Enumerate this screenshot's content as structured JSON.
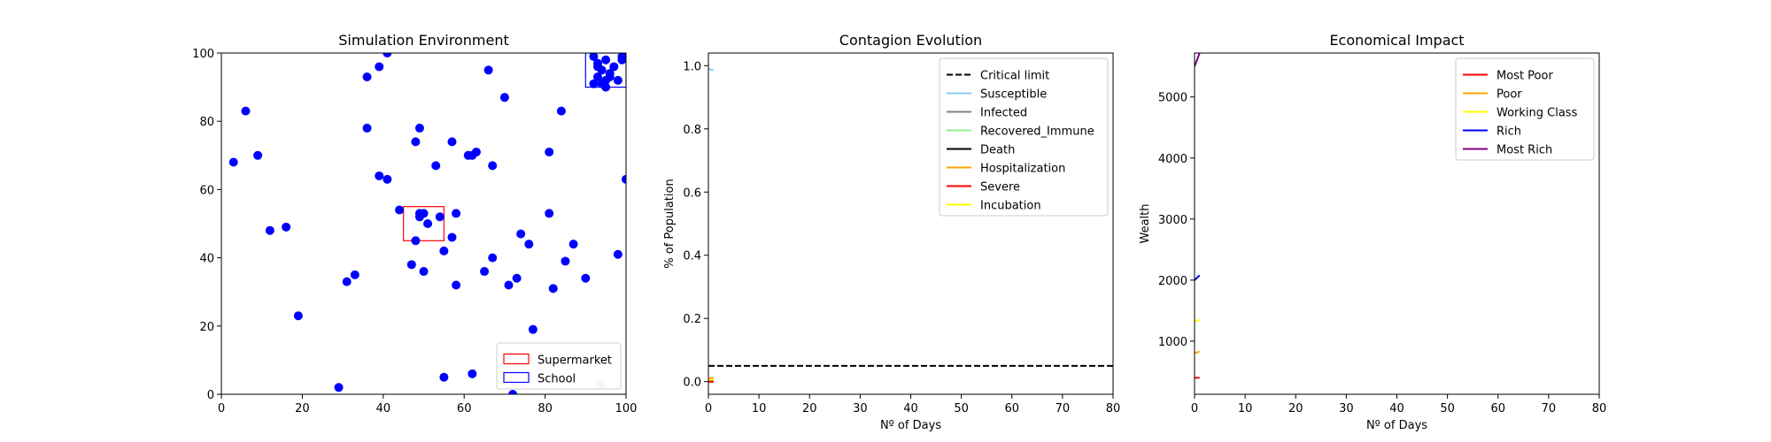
{
  "chart_data": [
    {
      "type": "scatter",
      "title": "Simulation Environment",
      "xlabel": "",
      "ylabel": "",
      "xlim": [
        0,
        100
      ],
      "ylim": [
        0,
        100
      ],
      "xticks": [
        0,
        20,
        40,
        60,
        80,
        100
      ],
      "yticks": [
        0,
        20,
        40,
        60,
        80,
        100
      ],
      "grid": false,
      "legend_position": "lower-right",
      "regions": [
        {
          "name": "Supermarket",
          "color": "#ff0000",
          "x": [
            45,
            55
          ],
          "y": [
            45,
            55
          ]
        },
        {
          "name": "School",
          "color": "#0000ff",
          "x": [
            90,
            100
          ],
          "y": [
            90,
            100
          ]
        }
      ],
      "points": [
        {
          "x": 3,
          "y": 68
        },
        {
          "x": 6,
          "y": 83
        },
        {
          "x": 9,
          "y": 70
        },
        {
          "x": 12,
          "y": 48
        },
        {
          "x": 16,
          "y": 49
        },
        {
          "x": 19,
          "y": 23
        },
        {
          "x": 29,
          "y": 2
        },
        {
          "x": 31,
          "y": 33
        },
        {
          "x": 33,
          "y": 35
        },
        {
          "x": 36,
          "y": 93
        },
        {
          "x": 36,
          "y": 78
        },
        {
          "x": 39,
          "y": 96
        },
        {
          "x": 39,
          "y": 64
        },
        {
          "x": 41,
          "y": 63
        },
        {
          "x": 41,
          "y": 100
        },
        {
          "x": 44,
          "y": 54
        },
        {
          "x": 47,
          "y": 38
        },
        {
          "x": 48,
          "y": 74
        },
        {
          "x": 48,
          "y": 45
        },
        {
          "x": 49,
          "y": 78
        },
        {
          "x": 49,
          "y": 53
        },
        {
          "x": 49,
          "y": 52
        },
        {
          "x": 50,
          "y": 53
        },
        {
          "x": 50,
          "y": 36
        },
        {
          "x": 51,
          "y": 50
        },
        {
          "x": 53,
          "y": 67
        },
        {
          "x": 54,
          "y": 52
        },
        {
          "x": 55,
          "y": 42
        },
        {
          "x": 55,
          "y": 5
        },
        {
          "x": 57,
          "y": 74
        },
        {
          "x": 57,
          "y": 46
        },
        {
          "x": 58,
          "y": 53
        },
        {
          "x": 58,
          "y": 32
        },
        {
          "x": 61,
          "y": 70
        },
        {
          "x": 62,
          "y": 70
        },
        {
          "x": 62,
          "y": 6
        },
        {
          "x": 63,
          "y": 71
        },
        {
          "x": 65,
          "y": 36
        },
        {
          "x": 66,
          "y": 95
        },
        {
          "x": 67,
          "y": 67
        },
        {
          "x": 67,
          "y": 40
        },
        {
          "x": 70,
          "y": 87
        },
        {
          "x": 71,
          "y": 32
        },
        {
          "x": 72,
          "y": 0
        },
        {
          "x": 73,
          "y": 34
        },
        {
          "x": 74,
          "y": 47
        },
        {
          "x": 76,
          "y": 44
        },
        {
          "x": 77,
          "y": 19
        },
        {
          "x": 81,
          "y": 71
        },
        {
          "x": 81,
          "y": 53
        },
        {
          "x": 82,
          "y": 31
        },
        {
          "x": 84,
          "y": 83
        },
        {
          "x": 85,
          "y": 39
        },
        {
          "x": 87,
          "y": 44
        },
        {
          "x": 90,
          "y": 34
        },
        {
          "x": 98,
          "y": 41
        },
        {
          "x": 100,
          "y": 63
        },
        {
          "x": 92,
          "y": 99
        },
        {
          "x": 93,
          "y": 97
        },
        {
          "x": 94,
          "y": 95
        },
        {
          "x": 92,
          "y": 91
        },
        {
          "x": 93,
          "y": 93
        },
        {
          "x": 95,
          "y": 98
        },
        {
          "x": 95,
          "y": 92
        },
        {
          "x": 96,
          "y": 94
        },
        {
          "x": 97,
          "y": 96
        },
        {
          "x": 98,
          "y": 92
        },
        {
          "x": 99,
          "y": 98
        },
        {
          "x": 99,
          "y": 99
        },
        {
          "x": 94,
          "y": 91
        },
        {
          "x": 96,
          "y": 93
        },
        {
          "x": 93,
          "y": 96
        },
        {
          "x": 95,
          "y": 90
        },
        {
          "x": 94,
          "y": 3,
          "faded": true
        }
      ],
      "point_color": "#0000ff"
    },
    {
      "type": "line",
      "title": "Contagion Evolution",
      "xlabel": "Nº of Days",
      "ylabel": "% of Population",
      "xlim": [
        0,
        80
      ],
      "ylim": [
        -0.04,
        1.04
      ],
      "xticks": [
        0,
        10,
        20,
        30,
        40,
        50,
        60,
        70,
        80
      ],
      "yticks": [
        0.0,
        0.2,
        0.4,
        0.6,
        0.8,
        1.0
      ],
      "grid": false,
      "legend_position": "upper-right",
      "series": [
        {
          "name": "Critical limit",
          "color": "#000000",
          "dashed": true,
          "x": [
            0,
            80
          ],
          "y": [
            0.05,
            0.05
          ]
        },
        {
          "name": "Susceptible",
          "color": "#87ceeb",
          "x": [
            0,
            1
          ],
          "y": [
            0.99,
            0.985
          ]
        },
        {
          "name": "Infected",
          "color": "#808080",
          "x": [
            0,
            1
          ],
          "y": [
            0.01,
            0.012
          ]
        },
        {
          "name": "Recovered_Immune",
          "color": "#90ee90",
          "x": [
            0,
            1
          ],
          "y": [
            0.0,
            0.0
          ]
        },
        {
          "name": "Death",
          "color": "#000000",
          "x": [
            0,
            1
          ],
          "y": [
            0.0,
            0.0
          ]
        },
        {
          "name": "Hospitalization",
          "color": "#ffa500",
          "x": [
            0,
            1
          ],
          "y": [
            0.01,
            0.012
          ]
        },
        {
          "name": "Severe",
          "color": "#ff0000",
          "x": [
            0,
            1
          ],
          "y": [
            0.0,
            0.0
          ]
        },
        {
          "name": "Incubation",
          "color": "#ffff00",
          "x": [
            0,
            1
          ],
          "y": [
            0.005,
            0.007
          ]
        }
      ]
    },
    {
      "type": "line",
      "title": "Economical Impact",
      "xlabel": "Nº of Days",
      "ylabel": "Wealth",
      "xlim": [
        0,
        80
      ],
      "ylim": [
        130,
        5720
      ],
      "xticks": [
        0,
        10,
        20,
        30,
        40,
        50,
        60,
        70,
        80
      ],
      "yticks": [
        1000,
        2000,
        3000,
        4000,
        5000
      ],
      "grid": false,
      "legend_position": "upper-right",
      "series": [
        {
          "name": "Most Poor",
          "color": "#ff0000",
          "x": [
            0,
            1
          ],
          "y": [
            400,
            400
          ]
        },
        {
          "name": "Poor",
          "color": "#ffa500",
          "x": [
            0,
            1
          ],
          "y": [
            800,
            830
          ]
        },
        {
          "name": "Working Class",
          "color": "#ffff00",
          "x": [
            0,
            1
          ],
          "y": [
            1320,
            1350
          ]
        },
        {
          "name": "Rich",
          "color": "#0000ff",
          "x": [
            0,
            1
          ],
          "y": [
            2000,
            2080
          ]
        },
        {
          "name": "Most Rich",
          "color": "#800080",
          "x": [
            0,
            1
          ],
          "y": [
            5500,
            5720
          ]
        }
      ]
    }
  ]
}
